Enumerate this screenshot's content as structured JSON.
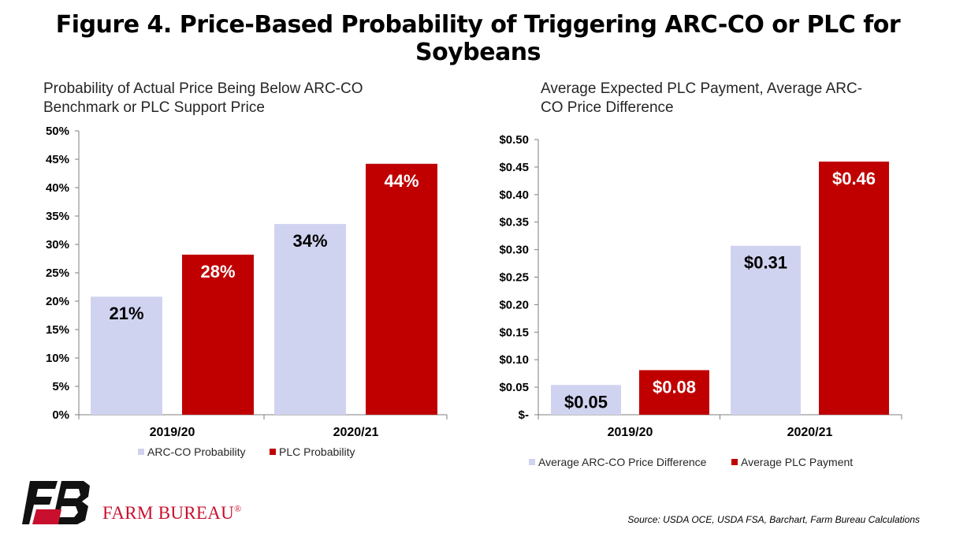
{
  "figure_title": "Figure 4. Price-Based Probability of Triggering ARC-CO or PLC for Soybeans",
  "colors": {
    "arc": "#d0d3f0",
    "plc": "#c00000",
    "axis": "#7f7f7f"
  },
  "chart_data": [
    {
      "type": "bar",
      "title_lines": [
        "Probability of Actual Price Being Below ARC-CO",
        "Benchmark or PLC Support Price"
      ],
      "categories": [
        "2019/20",
        "2020/21"
      ],
      "ylim": [
        0,
        0.5
      ],
      "ytick_values": [
        0,
        0.05,
        0.1,
        0.15,
        0.2,
        0.25,
        0.3,
        0.35,
        0.4,
        0.45,
        0.5
      ],
      "ytick_labels": [
        "0%",
        "5%",
        "10%",
        "15%",
        "20%",
        "25%",
        "30%",
        "35%",
        "40%",
        "45%",
        "50%"
      ],
      "legend_placement": "bottom",
      "series": [
        {
          "name": "ARC-CO Probability",
          "values": [
            0.208,
            0.336
          ],
          "labels": [
            "21%",
            "34%"
          ],
          "color": "#d0d3f0",
          "label_color": "#000000"
        },
        {
          "name": "PLC Probability",
          "values": [
            0.282,
            0.442
          ],
          "labels": [
            "28%",
            "44%"
          ],
          "color": "#c00000",
          "label_color": "#ffffff"
        }
      ]
    },
    {
      "type": "bar",
      "title_lines": [
        "Average Expected PLC Payment, Average ARC-",
        "CO Price Difference"
      ],
      "categories": [
        "2019/20",
        "2020/21"
      ],
      "ylim": [
        0,
        0.5
      ],
      "ytick_values": [
        0,
        0.05,
        0.1,
        0.15,
        0.2,
        0.25,
        0.3,
        0.35,
        0.4,
        0.45,
        0.5
      ],
      "ytick_labels": [
        "$-",
        "$0.05",
        "$0.10",
        "$0.15",
        "$0.20",
        "$0.25",
        "$0.30",
        "$0.35",
        "$0.40",
        "$0.45",
        "$0.50"
      ],
      "legend_placement": "bottom",
      "series": [
        {
          "name": "Average ARC-CO Price Difference",
          "values": [
            0.054,
            0.307
          ],
          "labels": [
            "$0.05",
            "$0.31"
          ],
          "color": "#d0d3f0",
          "label_color": "#000000"
        },
        {
          "name": "Average PLC Payment",
          "values": [
            0.081,
            0.46
          ],
          "labels": [
            "$0.08",
            "$0.46"
          ],
          "color": "#c00000",
          "label_color": "#ffffff"
        }
      ]
    }
  ],
  "logo": {
    "text": "FARM BUREAU",
    "mark": "®"
  },
  "source": "Source: USDA OCE, USDA FSA, Barchart, Farm Bureau Calculations"
}
